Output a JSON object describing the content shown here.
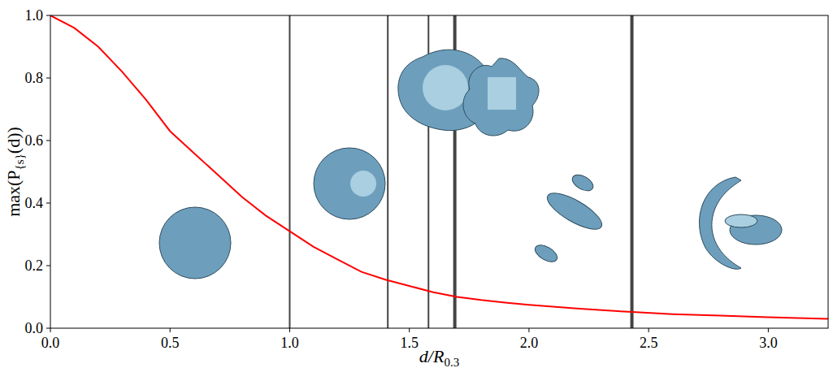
{
  "chart_data": {
    "type": "line",
    "x_label": "d/R",
    "x_label_sub": "0.3",
    "y_label": "max(P",
    "y_label_sub": "{s}",
    "y_label_end": "(d))",
    "color": "#ff0000",
    "x": [
      0,
      0.1,
      0.2,
      0.3,
      0.4,
      0.5,
      0.6,
      0.7,
      0.8,
      0.9,
      1.0,
      1.1,
      1.2,
      1.3,
      1.4,
      1.5,
      1.6,
      1.7,
      1.8,
      1.9,
      2.0,
      2.2,
      2.4,
      2.6,
      2.8,
      3.0,
      3.25
    ],
    "values": [
      1.0,
      0.96,
      0.9,
      0.82,
      0.73,
      0.63,
      0.56,
      0.49,
      0.42,
      0.36,
      0.31,
      0.26,
      0.22,
      0.18,
      0.155,
      0.135,
      0.115,
      0.1,
      0.09,
      0.082,
      0.075,
      0.063,
      0.053,
      0.045,
      0.04,
      0.035,
      0.03
    ],
    "vertical_lines": [
      1.0,
      1.41,
      1.58,
      1.69,
      2.43
    ],
    "xlim": [
      0,
      3.25
    ],
    "ylim": [
      0,
      1
    ],
    "xticks": [
      {
        "value": 0,
        "label": "0.0"
      },
      0.5,
      {
        "value": 1,
        "label": "1.0"
      },
      1.5,
      {
        "value": 2,
        "label": "2.0"
      },
      2.5,
      {
        "value": 3,
        "label": "3.0"
      }
    ],
    "yticks": [
      {
        "value": 0,
        "label": "0.0"
      },
      0.2,
      0.4,
      0.6,
      0.8,
      {
        "value": 1,
        "label": "1.0"
      }
    ],
    "grid": false
  }
}
